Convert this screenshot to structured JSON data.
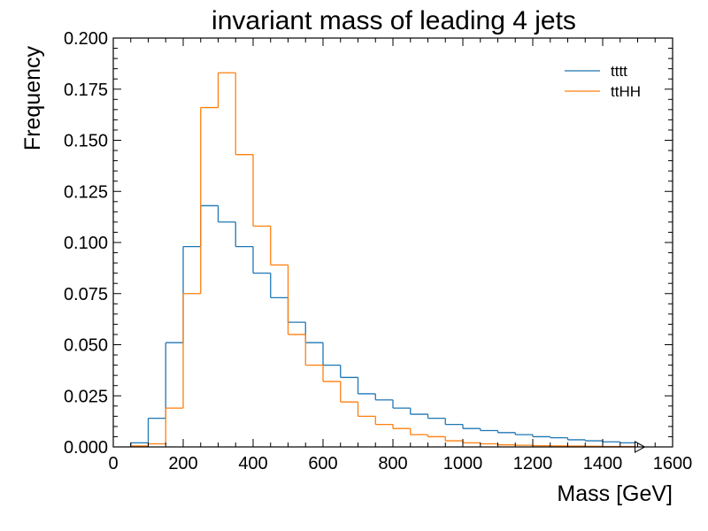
{
  "chart_data": {
    "type": "histogram",
    "title": "invariant mass of leading 4 jets",
    "xlabel": "Mass [GeV]",
    "ylabel": "Frequency",
    "xlim": [
      0,
      1600
    ],
    "ylim": [
      0,
      0.2
    ],
    "x_ticks": [
      "0",
      "200",
      "400",
      "600",
      "800",
      "1000",
      "1200",
      "1400",
      "1600"
    ],
    "y_ticks": [
      "0.000",
      "0.025",
      "0.050",
      "0.075",
      "0.100",
      "0.125",
      "0.150",
      "0.175",
      "0.200"
    ],
    "grid": false,
    "legend_position": "top-right",
    "bin_edges": [
      50,
      100,
      150,
      200,
      250,
      300,
      350,
      400,
      450,
      500,
      550,
      600,
      650,
      700,
      750,
      800,
      850,
      900,
      950,
      1000,
      1050,
      1100,
      1150,
      1200,
      1250,
      1300,
      1350,
      1400,
      1450,
      1500
    ],
    "series": [
      {
        "name": "tttt",
        "color": "#1f77b4",
        "values": [
          0.002,
          0.014,
          0.051,
          0.098,
          0.118,
          0.11,
          0.098,
          0.085,
          0.073,
          0.061,
          0.051,
          0.04,
          0.034,
          0.026,
          0.023,
          0.019,
          0.016,
          0.014,
          0.011,
          0.009,
          0.008,
          0.007,
          0.006,
          0.005,
          0.0045,
          0.0035,
          0.003,
          0.0025,
          0.002
        ]
      },
      {
        "name": "ttHH",
        "color": "#ff7f0e",
        "values": [
          0.0005,
          0.0015,
          0.019,
          0.075,
          0.166,
          0.183,
          0.143,
          0.108,
          0.089,
          0.055,
          0.04,
          0.032,
          0.022,
          0.015,
          0.011,
          0.009,
          0.006,
          0.005,
          0.003,
          0.002,
          0.0015,
          0.001,
          0.0008,
          0.0006,
          0.0005,
          0.0004,
          0.0003,
          0.0002,
          0.0002
        ]
      }
    ]
  }
}
